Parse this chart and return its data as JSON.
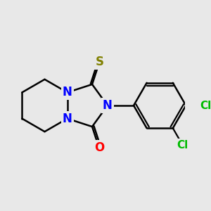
{
  "bg_color": "#e8e8e8",
  "bond_color": "#000000",
  "bond_width": 1.8,
  "n_color": "#0000ff",
  "o_color": "#ff0000",
  "s_color": "#808000",
  "cl_color": "#00bb00",
  "font_size_hetero": 12,
  "font_size_cl": 11,
  "figsize": [
    3.0,
    3.0
  ],
  "dpi": 100,
  "xlim": [
    -2.5,
    4.5
  ],
  "ylim": [
    -2.8,
    2.8
  ]
}
